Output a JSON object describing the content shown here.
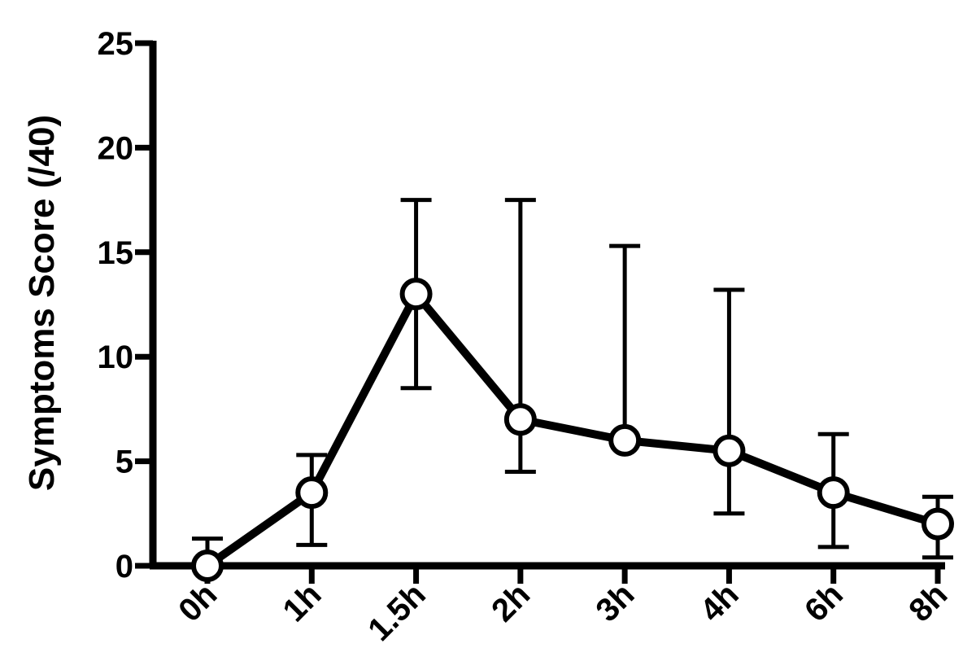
{
  "chart_data": {
    "type": "line",
    "categories": [
      "0h",
      "1h",
      "1.5h",
      "2h",
      "3h",
      "4h",
      "6h",
      "8h"
    ],
    "series": [
      {
        "values": [
          0,
          3.5,
          13,
          7,
          6,
          5.5,
          3.5,
          2
        ],
        "error_low": [
          0,
          1,
          8.5,
          4.5,
          6,
          2.5,
          0.9,
          0.4
        ],
        "error_high": [
          1.3,
          5.3,
          17.5,
          17.5,
          15.3,
          13.2,
          6.3,
          3.3
        ]
      }
    ],
    "title": "",
    "xlabel": "",
    "ylabel": "Symptoms Score (/40)",
    "ylim": [
      0,
      25
    ],
    "yticks": [
      0,
      5,
      10,
      15,
      20,
      25
    ],
    "grid": false,
    "marker": "open-circle",
    "color": "#000000"
  }
}
